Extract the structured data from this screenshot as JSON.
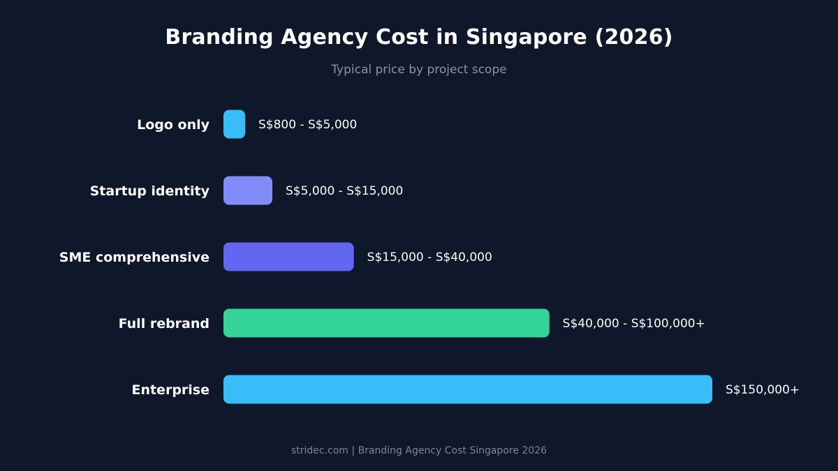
{
  "chart_data": {
    "type": "bar",
    "orientation": "horizontal",
    "title": "Branding Agency Cost in Singapore (2026)",
    "subtitle": "Typical price by project scope",
    "categories": [
      "Logo only",
      "Startup identity",
      "SME comprehensive",
      "Full rebrand",
      "Enterprise"
    ],
    "values": [
      5000,
      15000,
      40000,
      100000,
      150000
    ],
    "value_labels": [
      "S$800 - S$5,000",
      "S$5,000 - S$15,000",
      "S$15,000 - S$40,000",
      "S$40,000 - S$100,000+",
      "S$150,000+"
    ],
    "colors": [
      "#38bdf8",
      "#818cf8",
      "#6366f1",
      "#34d399",
      "#38bdf8"
    ],
    "xlim": [
      0,
      150000
    ],
    "grid": false,
    "legend": "none"
  },
  "footer": "stridec.com  |  Branding Agency Cost Singapore 2026",
  "background": "#0f172a"
}
